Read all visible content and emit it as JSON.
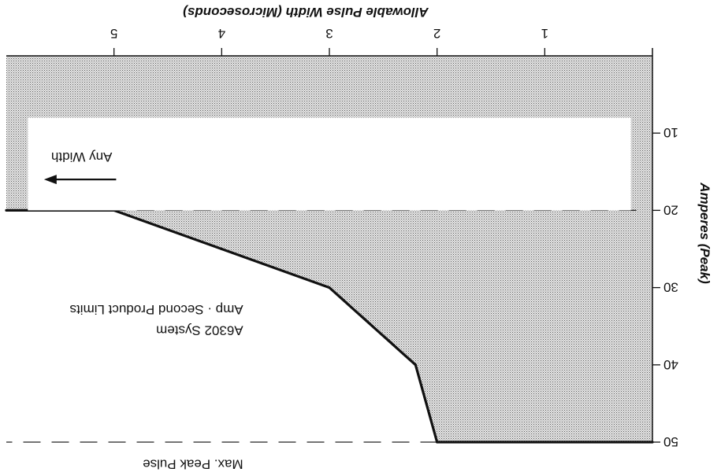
{
  "chart_data": {
    "type": "line",
    "orientation": "rotated-180",
    "title": "",
    "xlabel": "Allowable Pulse Width (Microseconds)",
    "ylabel": "Amperes (Peak)",
    "xlim": [
      0,
      6
    ],
    "ylim": [
      0,
      50
    ],
    "x_ticks": [
      1,
      2,
      3,
      4,
      5
    ],
    "y_ticks": [
      10,
      20,
      30,
      40,
      50
    ],
    "series": [
      {
        "name": "",
        "x": [
          0,
          2,
          2.2,
          3,
          4,
          5,
          6
        ],
        "y": [
          50,
          50,
          40,
          30,
          25,
          20,
          20
        ]
      }
    ],
    "shaded_region": "allowable",
    "reference_lines": [
      {
        "axis": "y",
        "value": 20,
        "style": "dashed"
      },
      {
        "axis": "y",
        "value": 50,
        "style": "dashed"
      }
    ],
    "annotations": {
      "any_width": "Any Width",
      "system_line1": "A6302 System",
      "system_line2": "Amp · Second Product Limits",
      "max_peak": "Max. Peak Pulse"
    },
    "grid": false,
    "legend": "none"
  }
}
